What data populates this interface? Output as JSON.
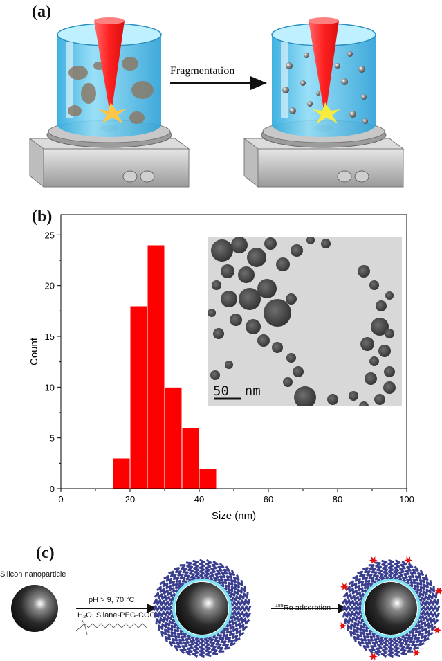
{
  "panel_a": {
    "label": "(a)",
    "arrow_label": "Fragmentation"
  },
  "panel_b": {
    "label": "(b)",
    "inset_scale_label": "50  nm"
  },
  "panel_c": {
    "label": "(c)",
    "particle_label": "Silicon nanoparticle",
    "step1_condition": "pH > 9, 70 °C",
    "step1_reagents": "H₂O, Silane-PEG-COOH",
    "step2_sup": "188",
    "step2_label": "Re adsorbtion"
  },
  "chart_data": {
    "type": "bar",
    "xlabel": "Size (nm)",
    "ylabel": "Count",
    "xlim": [
      0,
      100
    ],
    "ylim": [
      0,
      27
    ],
    "xticks": [
      0,
      20,
      40,
      60,
      80,
      100
    ],
    "yticks": [
      0,
      5,
      10,
      15,
      20,
      25
    ],
    "bin_width": 5,
    "bins": [
      {
        "start": 15,
        "end": 20,
        "count": 3
      },
      {
        "start": 20,
        "end": 25,
        "count": 18
      },
      {
        "start": 25,
        "end": 30,
        "count": 24
      },
      {
        "start": 30,
        "end": 35,
        "count": 10
      },
      {
        "start": 35,
        "end": 40,
        "count": 6
      },
      {
        "start": 40,
        "end": 45,
        "count": 2
      }
    ],
    "bar_color": "#ff0000",
    "grid": false
  },
  "colors": {
    "beaker": "#5ac8ee",
    "laser": "#ff3b3b",
    "peg": "#3a3f8f",
    "shell": "#7fe3f0",
    "re_star": "#e01010"
  }
}
